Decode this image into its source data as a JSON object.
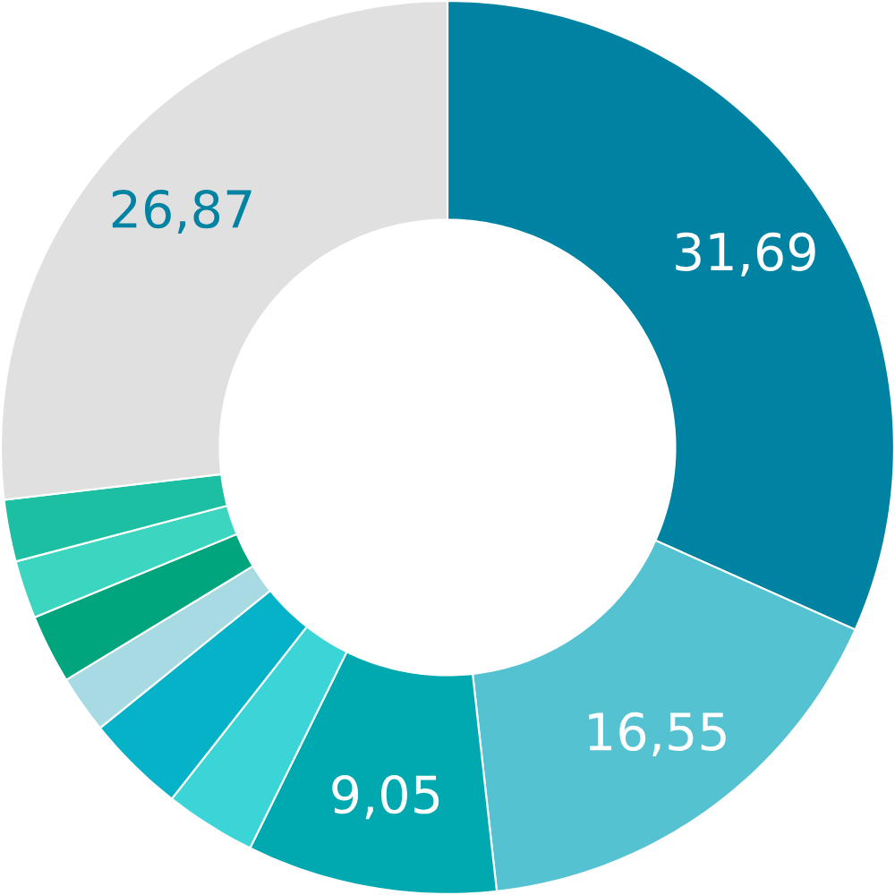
{
  "chart_data": {
    "type": "donut",
    "categories": [
      null,
      null,
      null,
      null,
      null,
      null,
      null,
      null,
      null,
      null
    ],
    "values": [
      31.69,
      16.55,
      9.05,
      3.3,
      3.6,
      2.1,
      2.5,
      2.1,
      2.24,
      26.87
    ],
    "colors": [
      "#0083a3",
      "#54c2d0",
      "#00a8b0",
      "#3bd5d8",
      "#05b2c8",
      "#a7dae3",
      "#00a57e",
      "#3cd6c0",
      "#1cbfa2",
      "#e0e0e0"
    ],
    "value_labels": [
      "31,69",
      "16,55",
      "9,05",
      null,
      null,
      null,
      null,
      null,
      null,
      "26,87"
    ]
  }
}
